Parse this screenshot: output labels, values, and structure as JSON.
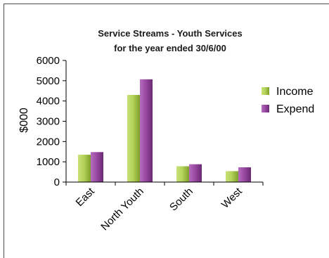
{
  "chart_data": {
    "type": "bar",
    "title": "Service Streams - Youth Services",
    "subtitle": "for the year ended 30/6/00",
    "ylabel": "$000",
    "xlabel": "",
    "ylim": [
      0,
      6000
    ],
    "yticks": [
      "0",
      "1000",
      "2000",
      "3000",
      "4000",
      "5000",
      "6000"
    ],
    "categories": [
      "East",
      "North Youth",
      "South",
      "West"
    ],
    "series": [
      {
        "name": "Income",
        "values": [
          1350,
          4300,
          780,
          540
        ],
        "color": "#a6c94a"
      },
      {
        "name": "Expend",
        "values": [
          1480,
          5070,
          880,
          730
        ],
        "color": "#8e3f97"
      }
    ],
    "legend_position": "right",
    "grid": false
  }
}
